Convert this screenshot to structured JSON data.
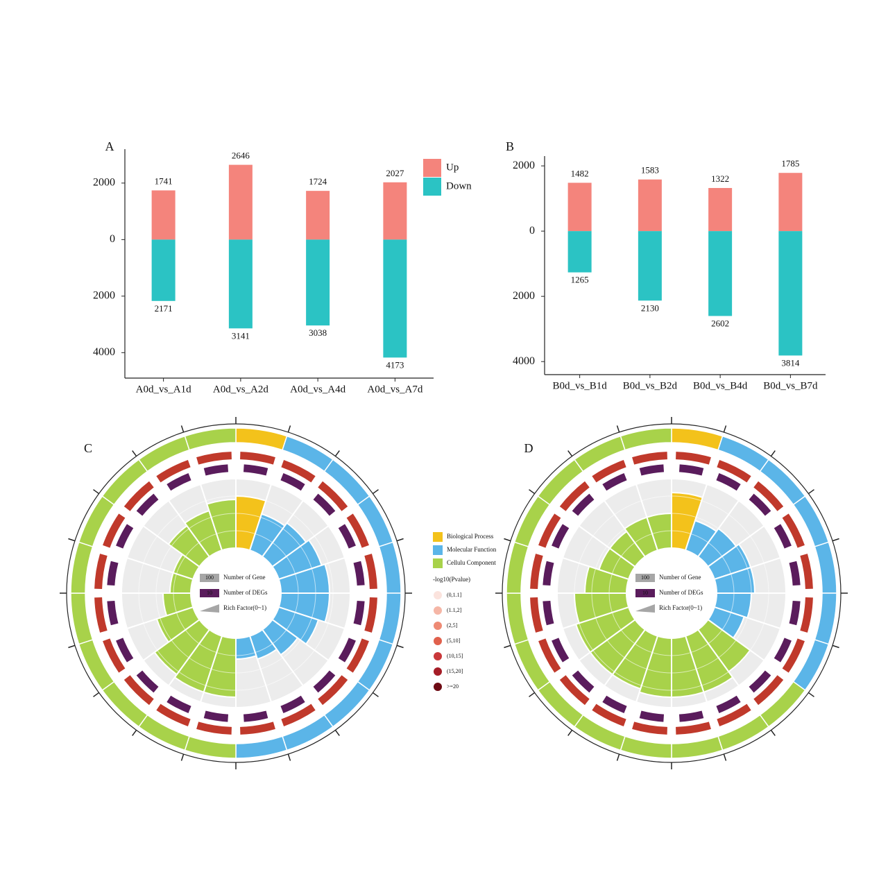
{
  "chart_data": [
    {
      "type": "bar",
      "panel": "A",
      "categories": [
        "A0d_vs_A1d",
        "A0d_vs_A2d",
        "A0d_vs_A4d",
        "A0d_vs_A7d"
      ],
      "series": [
        {
          "name": "Up",
          "color": "#f4847c",
          "values": [
            1741,
            2646,
            1724,
            2027
          ]
        },
        {
          "name": "Down",
          "color": "#2bc3c4",
          "values": [
            -2171,
            -3141,
            -3038,
            -4173
          ],
          "value_labels": [
            "2171",
            "3141",
            "3038",
            "4173"
          ]
        }
      ],
      "ylim": [
        -4900,
        3200
      ],
      "yticks": [
        2000,
        0,
        {
          "value": -2000,
          "label": "2000"
        },
        {
          "value": -4000,
          "label": "4000"
        }
      ],
      "legend": "top-right"
    },
    {
      "type": "bar",
      "panel": "B",
      "categories": [
        "B0d_vs_B1d",
        "B0d_vs_B2d",
        "B0d_vs_B4d",
        "B0d_vs_B7d"
      ],
      "series": [
        {
          "name": "Up",
          "color": "#f4847c",
          "values": [
            1482,
            1583,
            1322,
            1785
          ]
        },
        {
          "name": "Down",
          "color": "#2bc3c4",
          "values": [
            -1265,
            -2130,
            -2602,
            -3814
          ],
          "value_labels": [
            "1265",
            "2130",
            "2602",
            "3814"
          ]
        }
      ],
      "ylim": [
        -4400,
        2300
      ],
      "yticks": [
        2000,
        0,
        {
          "value": -2000,
          "label": "2000"
        },
        {
          "value": -4000,
          "label": "4000"
        }
      ]
    },
    {
      "type": "circular",
      "panel": "C",
      "rlim": [
        0,
        1
      ],
      "series": [
        {
          "color": "#f3c21b",
          "values": [
            0.75
          ]
        },
        {
          "color": "#5bb5e8",
          "values": [
            0.55,
            0.6,
            0.65,
            0.7,
            0.7,
            0.6,
            0.45,
            0.35,
            0.3
          ]
        },
        {
          "color": "#a8d24a",
          "values": [
            0.85,
            0.85,
            0.8,
            0.55,
            0.4,
            0.3,
            0.3,
            0.55,
            0.6,
            0.7
          ]
        }
      ],
      "inner_legend": [
        {
          "sample": 100,
          "label": "Number of Gene"
        },
        {
          "sample": 10,
          "label": "Number of DEGs"
        },
        {
          "label": "Rich Factor(0~1)"
        }
      ]
    },
    {
      "type": "circular",
      "panel": "D",
      "rlim": [
        0,
        1
      ],
      "series": [
        {
          "color": "#f3c21b",
          "values": [
            0.8
          ]
        },
        {
          "color": "#5bb5e8",
          "values": [
            0.45,
            0.5,
            0.55,
            0.55,
            0.5,
            0.45
          ]
        },
        {
          "color": "#a8d24a",
          "values": [
            0.75,
            0.85,
            0.85,
            0.85,
            0.8,
            0.8,
            0.8,
            0.75,
            0.6,
            0.45,
            0.45,
            0.5,
            0.5
          ]
        }
      ],
      "inner_legend": [
        {
          "sample": 100,
          "label": "Number of Gene"
        },
        {
          "sample": 10,
          "label": "Number of DEGs"
        },
        {
          "label": "Rich Factor(0~1)"
        }
      ]
    }
  ],
  "go_legend": {
    "items": [
      {
        "name": "Biological Process",
        "color": "#f3c21b"
      },
      {
        "name": "Molecular Function",
        "color": "#5bb5e8"
      },
      {
        "name": "Cellulu Component",
        "color": "#a8d24a"
      }
    ],
    "pvalue_title": "-log10(Pvalue)",
    "pvalue_labels": [
      "(0,1.1]",
      "(1.1,2]",
      "(2,5]",
      "(5,10]",
      "(10,15]",
      "(15,20]",
      ">=20"
    ],
    "pvalue_colors": [
      "#fbe3dd",
      "#f5b6a6",
      "#ee8a74",
      "#e0604c",
      "#c9383a",
      "#a51d27",
      "#6e0b14"
    ]
  }
}
